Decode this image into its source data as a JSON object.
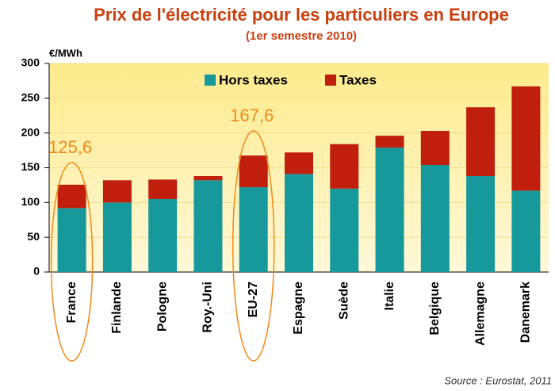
{
  "chart_data": {
    "type": "stacked-bar",
    "title": "Prix de l'électricité pour les particuliers en Europe",
    "subtitle": "(1er semestre 2010)",
    "y_unit": "€/MWh",
    "source": "Source : Eurostat, 2011",
    "categories": [
      "France",
      "Finlande",
      "Pologne",
      "Roy.-Uni",
      "EU-27",
      "Espagne",
      "Suède",
      "Italie",
      "Belgique",
      "Allemagne",
      "Danemark"
    ],
    "series": [
      {
        "name": "Hors taxes",
        "color": "#17989b",
        "values": [
          92,
          100,
          105,
          132,
          122,
          141,
          120,
          179,
          154,
          138,
          117
        ]
      },
      {
        "name": "Taxes",
        "color": "#c01f0e",
        "values": [
          33.6,
          32,
          28,
          6,
          45.6,
          31,
          64,
          17,
          49,
          99,
          150
        ]
      }
    ],
    "annotations": [
      "125,6",
      "167,6"
    ],
    "ylim": [
      0,
      300
    ],
    "yticks": [
      0,
      50,
      100,
      150,
      200,
      250,
      300
    ],
    "grid": true
  }
}
